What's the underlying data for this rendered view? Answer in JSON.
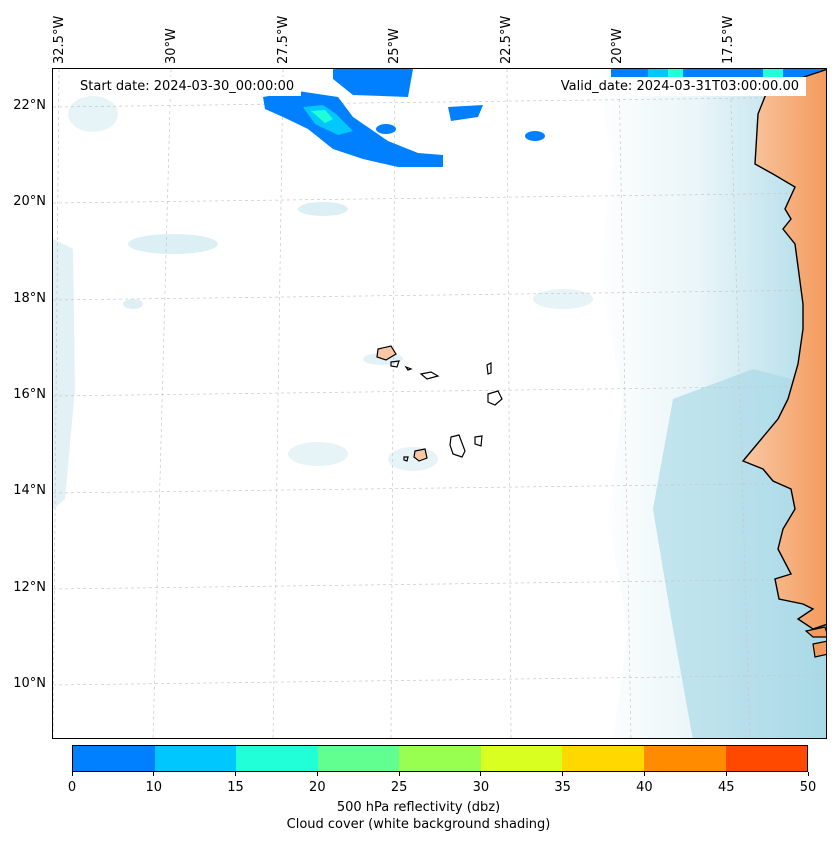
{
  "start_date": "Start date: 2024-03-30_00:00:00",
  "valid_date": "Valid_date: 2024-03-31T03:00:00.00",
  "lon_labels": [
    "32.5°W",
    "30°W",
    "27.5°W",
    "25°W",
    "22.5°W",
    "20°W",
    "17.5°W"
  ],
  "lat_labels": [
    "22°N",
    "20°N",
    "18°N",
    "16°N",
    "14°N",
    "12°N",
    "10°N"
  ],
  "colorbar": {
    "colors": [
      "#0080ff",
      "#00c8ff",
      "#20ffd8",
      "#60ff90",
      "#98ff50",
      "#d8ff20",
      "#ffd800",
      "#ff8c00",
      "#ff4800"
    ],
    "ticks": [
      "0",
      "10",
      "15",
      "20",
      "25",
      "30",
      "35",
      "40",
      "45",
      "50"
    ],
    "label": "500 hPa reflectivity (dbz)",
    "sublabel": "Cloud cover (white background shading)"
  },
  "colors": {
    "land": "#f8c8a4",
    "land_dark": "#f49a5c",
    "cloud": "#a8d8e6",
    "reflectivity_low": "#0080ff",
    "reflectivity_mid": "#00c8ff",
    "reflectivity_high": "#20ffd8"
  }
}
